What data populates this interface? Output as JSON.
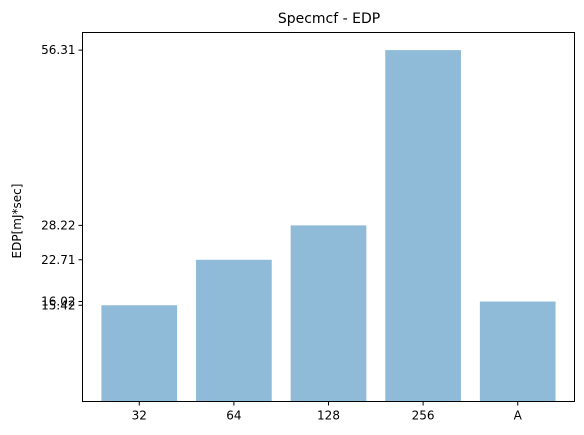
{
  "chart_data": {
    "type": "bar",
    "title": "Specmcf - EDP",
    "xlabel": "",
    "ylabel": "EDP[mJ*sec]",
    "categories": [
      "32",
      "64",
      "128",
      "256",
      "A"
    ],
    "values": [
      15.42,
      22.71,
      28.22,
      56.31,
      16.02
    ],
    "ytick_labels": [
      "15.42",
      "16.02",
      "22.71",
      "28.22",
      "56.31"
    ],
    "ylim": [
      0,
      59.13
    ],
    "bar_color": "#8fbad8",
    "grid": false,
    "legend": "none"
  }
}
